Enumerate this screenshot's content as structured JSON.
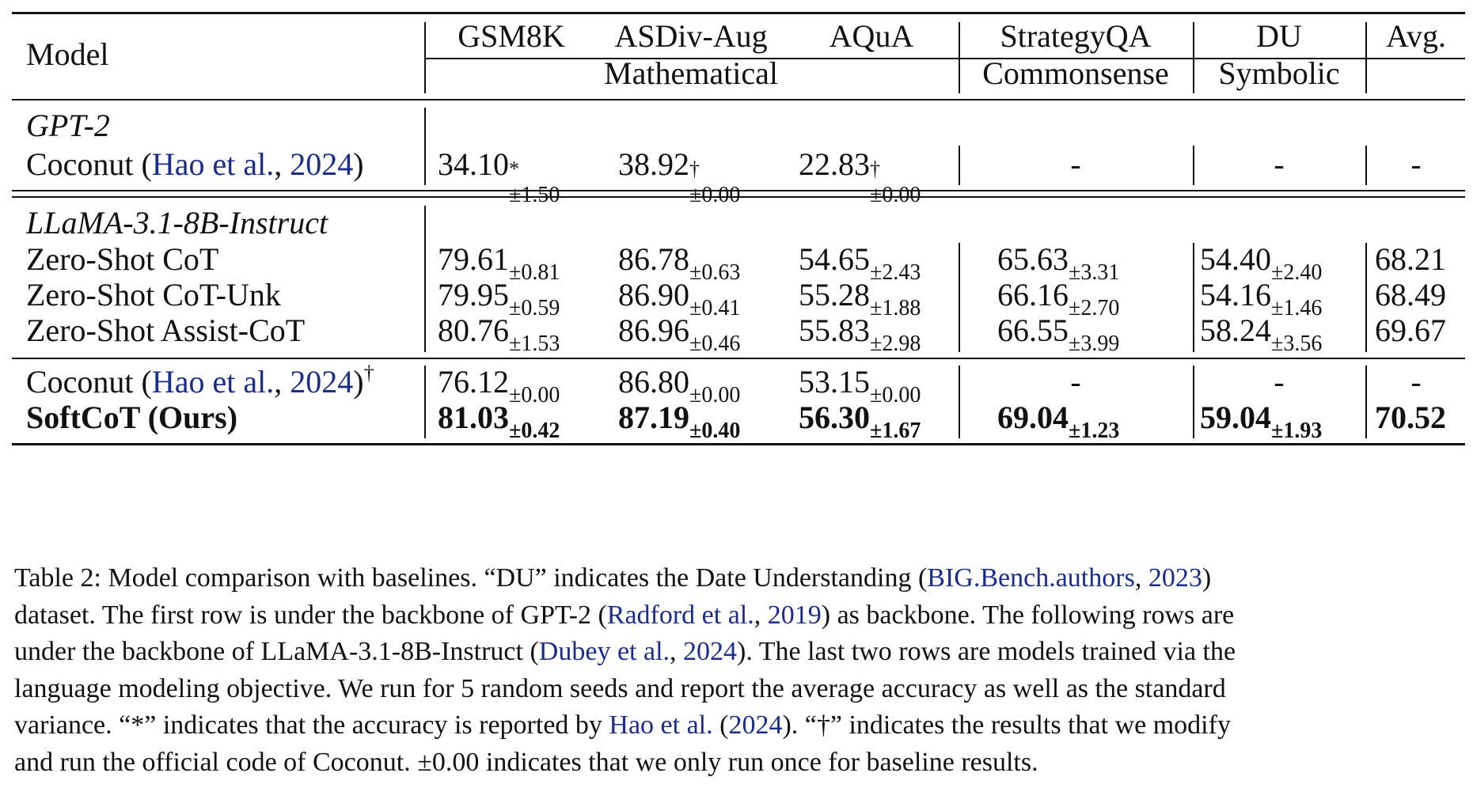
{
  "table": {
    "header": {
      "model": "Model",
      "columns": [
        "GSM8K",
        "ASDiv-Aug",
        "AQuA",
        "StrategyQA",
        "DU",
        "Avg."
      ],
      "groups": [
        "Mathematical",
        "Commonsense",
        "Symbolic"
      ]
    },
    "sections": [
      {
        "title": "GPT-2",
        "rows": [
          {
            "label": "Coconut (",
            "cite_author": "Hao et al.",
            "cite_year": "2024",
            "label_end": ")",
            "cells": [
              {
                "v": "34.10",
                "sup": "*",
                "std": "±1.50"
              },
              {
                "v": "38.92",
                "sup": "†",
                "std": "±0.00"
              },
              {
                "v": "22.83",
                "sup": "†",
                "std": "±0.00"
              },
              {
                "v": "-"
              },
              {
                "v": "-"
              },
              {
                "v": "-"
              }
            ]
          }
        ]
      },
      {
        "title": "LLaMA-3.1-8B-Instruct",
        "rows": [
          {
            "label": "Zero-Shot CoT",
            "cells": [
              {
                "v": "79.61",
                "std": "±0.81"
              },
              {
                "v": "86.78",
                "std": "±0.63"
              },
              {
                "v": "54.65",
                "std": "±2.43"
              },
              {
                "v": "65.63",
                "std": "±3.31"
              },
              {
                "v": "54.40",
                "std": "±2.40"
              },
              {
                "v": "68.21"
              }
            ]
          },
          {
            "label": "Zero-Shot CoT-Unk",
            "cells": [
              {
                "v": "79.95",
                "std": "±0.59"
              },
              {
                "v": "86.90",
                "std": "±0.41"
              },
              {
                "v": "55.28",
                "std": "±1.88"
              },
              {
                "v": "66.16",
                "std": "±2.70"
              },
              {
                "v": "54.16",
                "std": "±1.46"
              },
              {
                "v": "68.49"
              }
            ]
          },
          {
            "label": "Zero-Shot Assist-CoT",
            "cells": [
              {
                "v": "80.76",
                "std": "±1.53"
              },
              {
                "v": "86.96",
                "std": "±0.46"
              },
              {
                "v": "55.83",
                "std": "±2.98"
              },
              {
                "v": "66.55",
                "std": "±3.99"
              },
              {
                "v": "58.24",
                "std": "±3.56"
              },
              {
                "v": "69.67"
              }
            ]
          }
        ]
      },
      {
        "title": "",
        "rows": [
          {
            "label": "Coconut (",
            "cite_author": "Hao et al.",
            "cite_year": "2024",
            "label_end": ")",
            "label_sup": "†",
            "cells": [
              {
                "v": "76.12",
                "std": "±0.00"
              },
              {
                "v": "86.80",
                "std": "±0.00"
              },
              {
                "v": "53.15",
                "std": "±0.00"
              },
              {
                "v": "-"
              },
              {
                "v": "-"
              },
              {
                "v": "-"
              }
            ]
          },
          {
            "label": "SoftCoT (Ours)",
            "bold": true,
            "cells": [
              {
                "v": "81.03",
                "std": "±0.42"
              },
              {
                "v": "87.19",
                "std": "±0.40"
              },
              {
                "v": "56.30",
                "std": "±1.67"
              },
              {
                "v": "69.04",
                "std": "±1.23"
              },
              {
                "v": "59.04",
                "std": "±1.93"
              },
              {
                "v": "70.52"
              }
            ]
          }
        ]
      }
    ]
  },
  "caption": {
    "l1a": "Table 2: Model comparison with baselines. “DU” indicates the Date Understanding (",
    "l1c1": "BIG.Bench.authors",
    "l1b": ", ",
    "l1c2": "2023",
    "l1d": ")",
    "l2a": "dataset. The first row is under the backbone of GPT-2 (",
    "l2c1": "Radford et al.",
    "l2b": ", ",
    "l2c2": "2019",
    "l2d": ") as backbone. The following rows are",
    "l3a": "under the backbone of LLaMA-3.1-8B-Instruct (",
    "l3c1": "Dubey et al.",
    "l3b": ", ",
    "l3c2": "2024",
    "l3d": "). The last two rows are models trained via the",
    "l4": "language modeling objective. We run for 5 random seeds and report the average accuracy as well as the standard",
    "l5a": "variance. “*” indicates that the accuracy is reported by ",
    "l5c1": "Hao et al.",
    "l5b": " (",
    "l5c2": "2024",
    "l5d": "). “†” indicates the results that we modify",
    "l6": "and run the official code of Coconut. ±0.00 indicates that we only run once for baseline results."
  }
}
